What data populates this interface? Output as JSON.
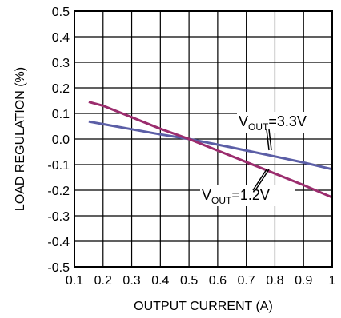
{
  "chart_data": {
    "type": "line",
    "title": "",
    "xlabel": "OUTPUT CURRENT (A)",
    "ylabel": "LOAD REGULATION (%)",
    "xlim": [
      0.1,
      1.0
    ],
    "ylim": [
      -0.5,
      0.5
    ],
    "x_ticks": [
      "0.1",
      "0.2",
      "0.3",
      "0.4",
      "0.5",
      "0.6",
      "0.7",
      "0.8",
      "0.9",
      "1"
    ],
    "y_ticks": [
      "0.5",
      "0.4",
      "0.3",
      "0.2",
      "0.1",
      "0.0",
      "-0.1",
      "-0.2",
      "-0.3",
      "-0.4",
      "-0.5"
    ],
    "grid": true,
    "legend": "none",
    "series": [
      {
        "name": "VOUT=3.3V",
        "label_main": "V",
        "label_sub": "OUT",
        "label_rest": "=3.3V",
        "color": "#5b5ea6",
        "points": [
          [
            0.15,
            0.068
          ],
          [
            0.2,
            0.058
          ],
          [
            0.3,
            0.038
          ],
          [
            0.4,
            0.018
          ],
          [
            0.5,
            0.0
          ],
          [
            0.6,
            -0.022
          ],
          [
            0.7,
            -0.045
          ],
          [
            0.8,
            -0.068
          ],
          [
            0.9,
            -0.092
          ],
          [
            1.0,
            -0.118
          ]
        ]
      },
      {
        "name": "VOUT=1.2V",
        "label_main": "V",
        "label_sub": "OUT",
        "label_rest": "=1.2V",
        "color": "#9b2d6e",
        "points": [
          [
            0.15,
            0.145
          ],
          [
            0.2,
            0.13
          ],
          [
            0.3,
            0.085
          ],
          [
            0.4,
            0.04
          ],
          [
            0.5,
            0.0
          ],
          [
            0.6,
            -0.045
          ],
          [
            0.7,
            -0.09
          ],
          [
            0.8,
            -0.135
          ],
          [
            0.9,
            -0.18
          ],
          [
            1.0,
            -0.228
          ]
        ]
      }
    ]
  }
}
